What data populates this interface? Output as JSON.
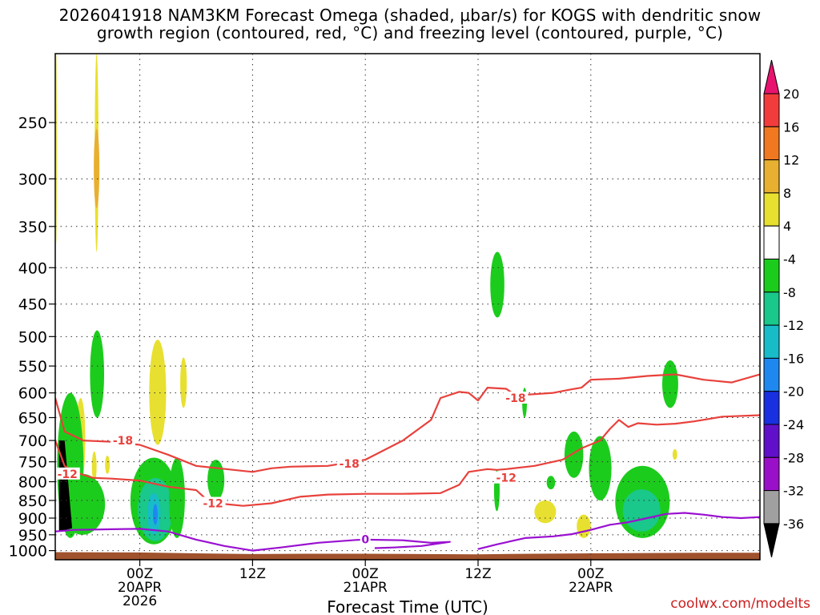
{
  "title_line1": "2026041918 NAM3KM Forecast Omega (shaded, μbar/s) for KOGS with dendritic snow",
  "title_line2": "growth region (contoured, red, °C) and freezing level (contoured, purple, °C)",
  "credit": "coolwx.com/modelts",
  "chart_data": {
    "type": "heatmap",
    "xlabel": "Forecast Time (UTC)",
    "x_range_hours_since_run": [
      -3,
      72
    ],
    "y_axis": {
      "scale": "log-pressure",
      "ylim": [
        1030,
        200
      ],
      "ticks": [
        250,
        300,
        350,
        400,
        450,
        500,
        550,
        600,
        650,
        700,
        750,
        800,
        850,
        900,
        950,
        1000
      ]
    },
    "x_ticks": [
      {
        "hour": 6,
        "label": "00Z",
        "sub1": "20APR",
        "sub2": "2026"
      },
      {
        "hour": 18,
        "label": "12Z",
        "sub1": "",
        "sub2": ""
      },
      {
        "hour": 30,
        "label": "00Z",
        "sub1": "21APR",
        "sub2": ""
      },
      {
        "hour": 42,
        "label": "12Z",
        "sub1": "",
        "sub2": ""
      },
      {
        "hour": 54,
        "label": "00Z",
        "sub1": "22APR",
        "sub2": ""
      }
    ],
    "grid": true,
    "colorbar": {
      "levels": [
        20,
        16,
        12,
        8,
        4,
        -4,
        -8,
        -12,
        -16,
        -20,
        -24,
        -28,
        -32,
        -36
      ],
      "colors": [
        "#e8136e",
        "#f23c3c",
        "#f07820",
        "#e8b030",
        "#e8e030",
        "#ffffff",
        "#1ccc1c",
        "#19c88a",
        "#18bcc8",
        "#1e88f0",
        "#1830e0",
        "#6010c8",
        "#9a10c8",
        "#a0a0a0",
        "#000000"
      ]
    },
    "omega_regions": [
      {
        "value": 6,
        "t": [
          1.2,
          1.6
        ],
        "p": [
          200,
          380
        ]
      },
      {
        "value": 10,
        "t": [
          1.1,
          1.7
        ],
        "p": [
          255,
          330
        ]
      },
      {
        "value": 5,
        "t": [
          -2.9,
          -2.8
        ],
        "p": [
          200,
          370
        ]
      },
      {
        "value": -6,
        "t": [
          0.7,
          2.2
        ],
        "p": [
          490,
          650
        ]
      },
      {
        "value": 5,
        "t": [
          -0.8,
          0.2
        ],
        "p": [
          610,
          800
        ]
      },
      {
        "value": 12,
        "t": [
          -0.5,
          0.0
        ],
        "p": [
          700,
          780
        ]
      },
      {
        "value": 5,
        "t": [
          0.9,
          1.4
        ],
        "p": [
          725,
          800
        ]
      },
      {
        "value": 5,
        "t": [
          2.3,
          2.8
        ],
        "p": [
          735,
          780
        ]
      },
      {
        "value": 5,
        "t": [
          7.0,
          8.8
        ],
        "p": [
          505,
          710
        ]
      },
      {
        "value": 5,
        "t": [
          10.3,
          11.0
        ],
        "p": [
          535,
          630
        ]
      },
      {
        "value": -6,
        "t": [
          -2.8,
          0.0
        ],
        "p": [
          600,
          960
        ]
      },
      {
        "value": -6,
        "t": [
          -2.5,
          2.3
        ],
        "p": [
          780,
          950
        ]
      },
      {
        "value": -6,
        "t": [
          5.0,
          10.0
        ],
        "p": [
          740,
          980
        ]
      },
      {
        "value": -9,
        "t": [
          5.8,
          9.5
        ],
        "p": [
          790,
          970
        ]
      },
      {
        "value": -14,
        "t": [
          6.8,
          8.2
        ],
        "p": [
          830,
          950
        ]
      },
      {
        "value": -18,
        "t": [
          7.4,
          7.9
        ],
        "p": [
          860,
          920
        ]
      },
      {
        "value": -6,
        "t": [
          9.1,
          10.8
        ],
        "p": [
          740,
          960
        ]
      },
      {
        "value": -6,
        "t": [
          13.2,
          15.0
        ],
        "p": [
          745,
          850
        ]
      },
      {
        "value": -6,
        "t": [
          43.3,
          44.8
        ],
        "p": [
          380,
          470
        ]
      },
      {
        "value": -6,
        "t": [
          43.7,
          44.3
        ],
        "p": [
          770,
          880
        ]
      },
      {
        "value": -6,
        "t": [
          46.7,
          47.2
        ],
        "p": [
          590,
          650
        ]
      },
      {
        "value": 5,
        "t": [
          48.0,
          50.3
        ],
        "p": [
          850,
          915
        ]
      },
      {
        "value": -6,
        "t": [
          49.3,
          50.2
        ],
        "p": [
          785,
          820
        ]
      },
      {
        "value": -6,
        "t": [
          51.2,
          53.2
        ],
        "p": [
          680,
          790
        ]
      },
      {
        "value": -6,
        "t": [
          53.8,
          56.2
        ],
        "p": [
          690,
          850
        ]
      },
      {
        "value": 5,
        "t": [
          52.5,
          54.0
        ],
        "p": [
          890,
          960
        ]
      },
      {
        "value": -6,
        "t": [
          56.6,
          62.4
        ],
        "p": [
          760,
          960
        ]
      },
      {
        "value": -10,
        "t": [
          57.4,
          61.4
        ],
        "p": [
          820,
          940
        ]
      },
      {
        "value": -6,
        "t": [
          61.6,
          63.3
        ],
        "p": [
          540,
          630
        ]
      },
      {
        "value": 5,
        "t": [
          62.7,
          63.2
        ],
        "p": [
          720,
          745
        ]
      }
    ],
    "isotherms": [
      {
        "value": -18,
        "color": "#e8413c",
        "points": [
          [
            -3,
            610
          ],
          [
            -2,
            680
          ],
          [
            0,
            700
          ],
          [
            3,
            703
          ],
          [
            6,
            710
          ],
          [
            9,
            733
          ],
          [
            12,
            760
          ],
          [
            16,
            770
          ],
          [
            18,
            775
          ],
          [
            20,
            766
          ],
          [
            22,
            762
          ],
          [
            26,
            760
          ],
          [
            30,
            745
          ],
          [
            34,
            700
          ],
          [
            37,
            655
          ],
          [
            38,
            610
          ],
          [
            40,
            598
          ],
          [
            41,
            600
          ],
          [
            42,
            615
          ],
          [
            43,
            590
          ],
          [
            45,
            592
          ],
          [
            46,
            605
          ],
          [
            50,
            600
          ],
          [
            52,
            593
          ],
          [
            53,
            590
          ],
          [
            54,
            575
          ],
          [
            57,
            573
          ],
          [
            60,
            568
          ],
          [
            63,
            565
          ],
          [
            66,
            575
          ],
          [
            69,
            580
          ],
          [
            72,
            565
          ]
        ]
      },
      {
        "value": -12,
        "color": "#e8413c",
        "points": [
          [
            -3,
            700
          ],
          [
            -2,
            760
          ],
          [
            -1,
            775
          ],
          [
            1,
            790
          ],
          [
            3,
            792
          ],
          [
            6,
            797
          ],
          [
            9,
            813
          ],
          [
            12,
            822
          ],
          [
            13,
            845
          ],
          [
            15,
            860
          ],
          [
            17,
            865
          ],
          [
            20,
            858
          ],
          [
            23,
            840
          ],
          [
            26,
            834
          ],
          [
            30,
            832
          ],
          [
            34,
            832
          ],
          [
            38,
            830
          ],
          [
            40,
            808
          ],
          [
            41,
            775
          ],
          [
            43,
            768
          ],
          [
            44,
            770
          ],
          [
            45,
            768
          ],
          [
            48,
            760
          ],
          [
            51,
            745
          ],
          [
            53,
            718
          ],
          [
            55,
            700
          ],
          [
            56,
            675
          ],
          [
            57,
            655
          ],
          [
            58,
            670
          ],
          [
            59,
            662
          ],
          [
            61,
            665
          ],
          [
            63,
            663
          ],
          [
            65,
            658
          ],
          [
            68,
            648
          ],
          [
            72,
            645
          ]
        ]
      }
    ],
    "freezing_level": [
      {
        "value": 0,
        "color": "#9a10d0",
        "points": [
          [
            -3,
            940
          ],
          [
            -1,
            935
          ],
          [
            3,
            933
          ],
          [
            6,
            932
          ],
          [
            9,
            940
          ],
          [
            12,
            965
          ],
          [
            15,
            985
          ],
          [
            18,
            1000
          ],
          [
            21,
            990
          ],
          [
            25,
            975
          ],
          [
            29,
            966
          ],
          [
            30,
            965
          ],
          [
            34,
            967
          ],
          [
            37,
            975
          ],
          [
            39,
            972
          ],
          [
            36,
            985
          ],
          [
            33,
            990
          ],
          [
            31,
            992
          ]
        ]
      },
      {
        "value": 0,
        "color": "#9a10d0",
        "points": [
          [
            42,
            995
          ],
          [
            44,
            980
          ],
          [
            47,
            960
          ],
          [
            50,
            955
          ],
          [
            52,
            948
          ],
          [
            54,
            935
          ],
          [
            56,
            920
          ],
          [
            58,
            912
          ],
          [
            60,
            900
          ],
          [
            62,
            888
          ],
          [
            64,
            885
          ],
          [
            66,
            890
          ],
          [
            68,
            897
          ],
          [
            70,
            900
          ],
          [
            72,
            897
          ]
        ]
      }
    ],
    "iso_labels": [
      {
        "text": "-18",
        "t": 4.2,
        "p": 700,
        "color": "#e8413c"
      },
      {
        "text": "-12",
        "t": -1.7,
        "p": 780,
        "color": "#e8413c"
      },
      {
        "text": "-12",
        "t": 13.8,
        "p": 858,
        "color": "#e8413c"
      },
      {
        "text": "-18",
        "t": 28.3,
        "p": 755,
        "color": "#e8413c"
      },
      {
        "text": "-18",
        "t": 46.0,
        "p": 610,
        "color": "#e8413c"
      },
      {
        "text": "-12",
        "t": 45.0,
        "p": 790,
        "color": "#e8413c"
      },
      {
        "text": "0",
        "t": 30.0,
        "p": 964,
        "color": "#9a10d0"
      }
    ]
  }
}
